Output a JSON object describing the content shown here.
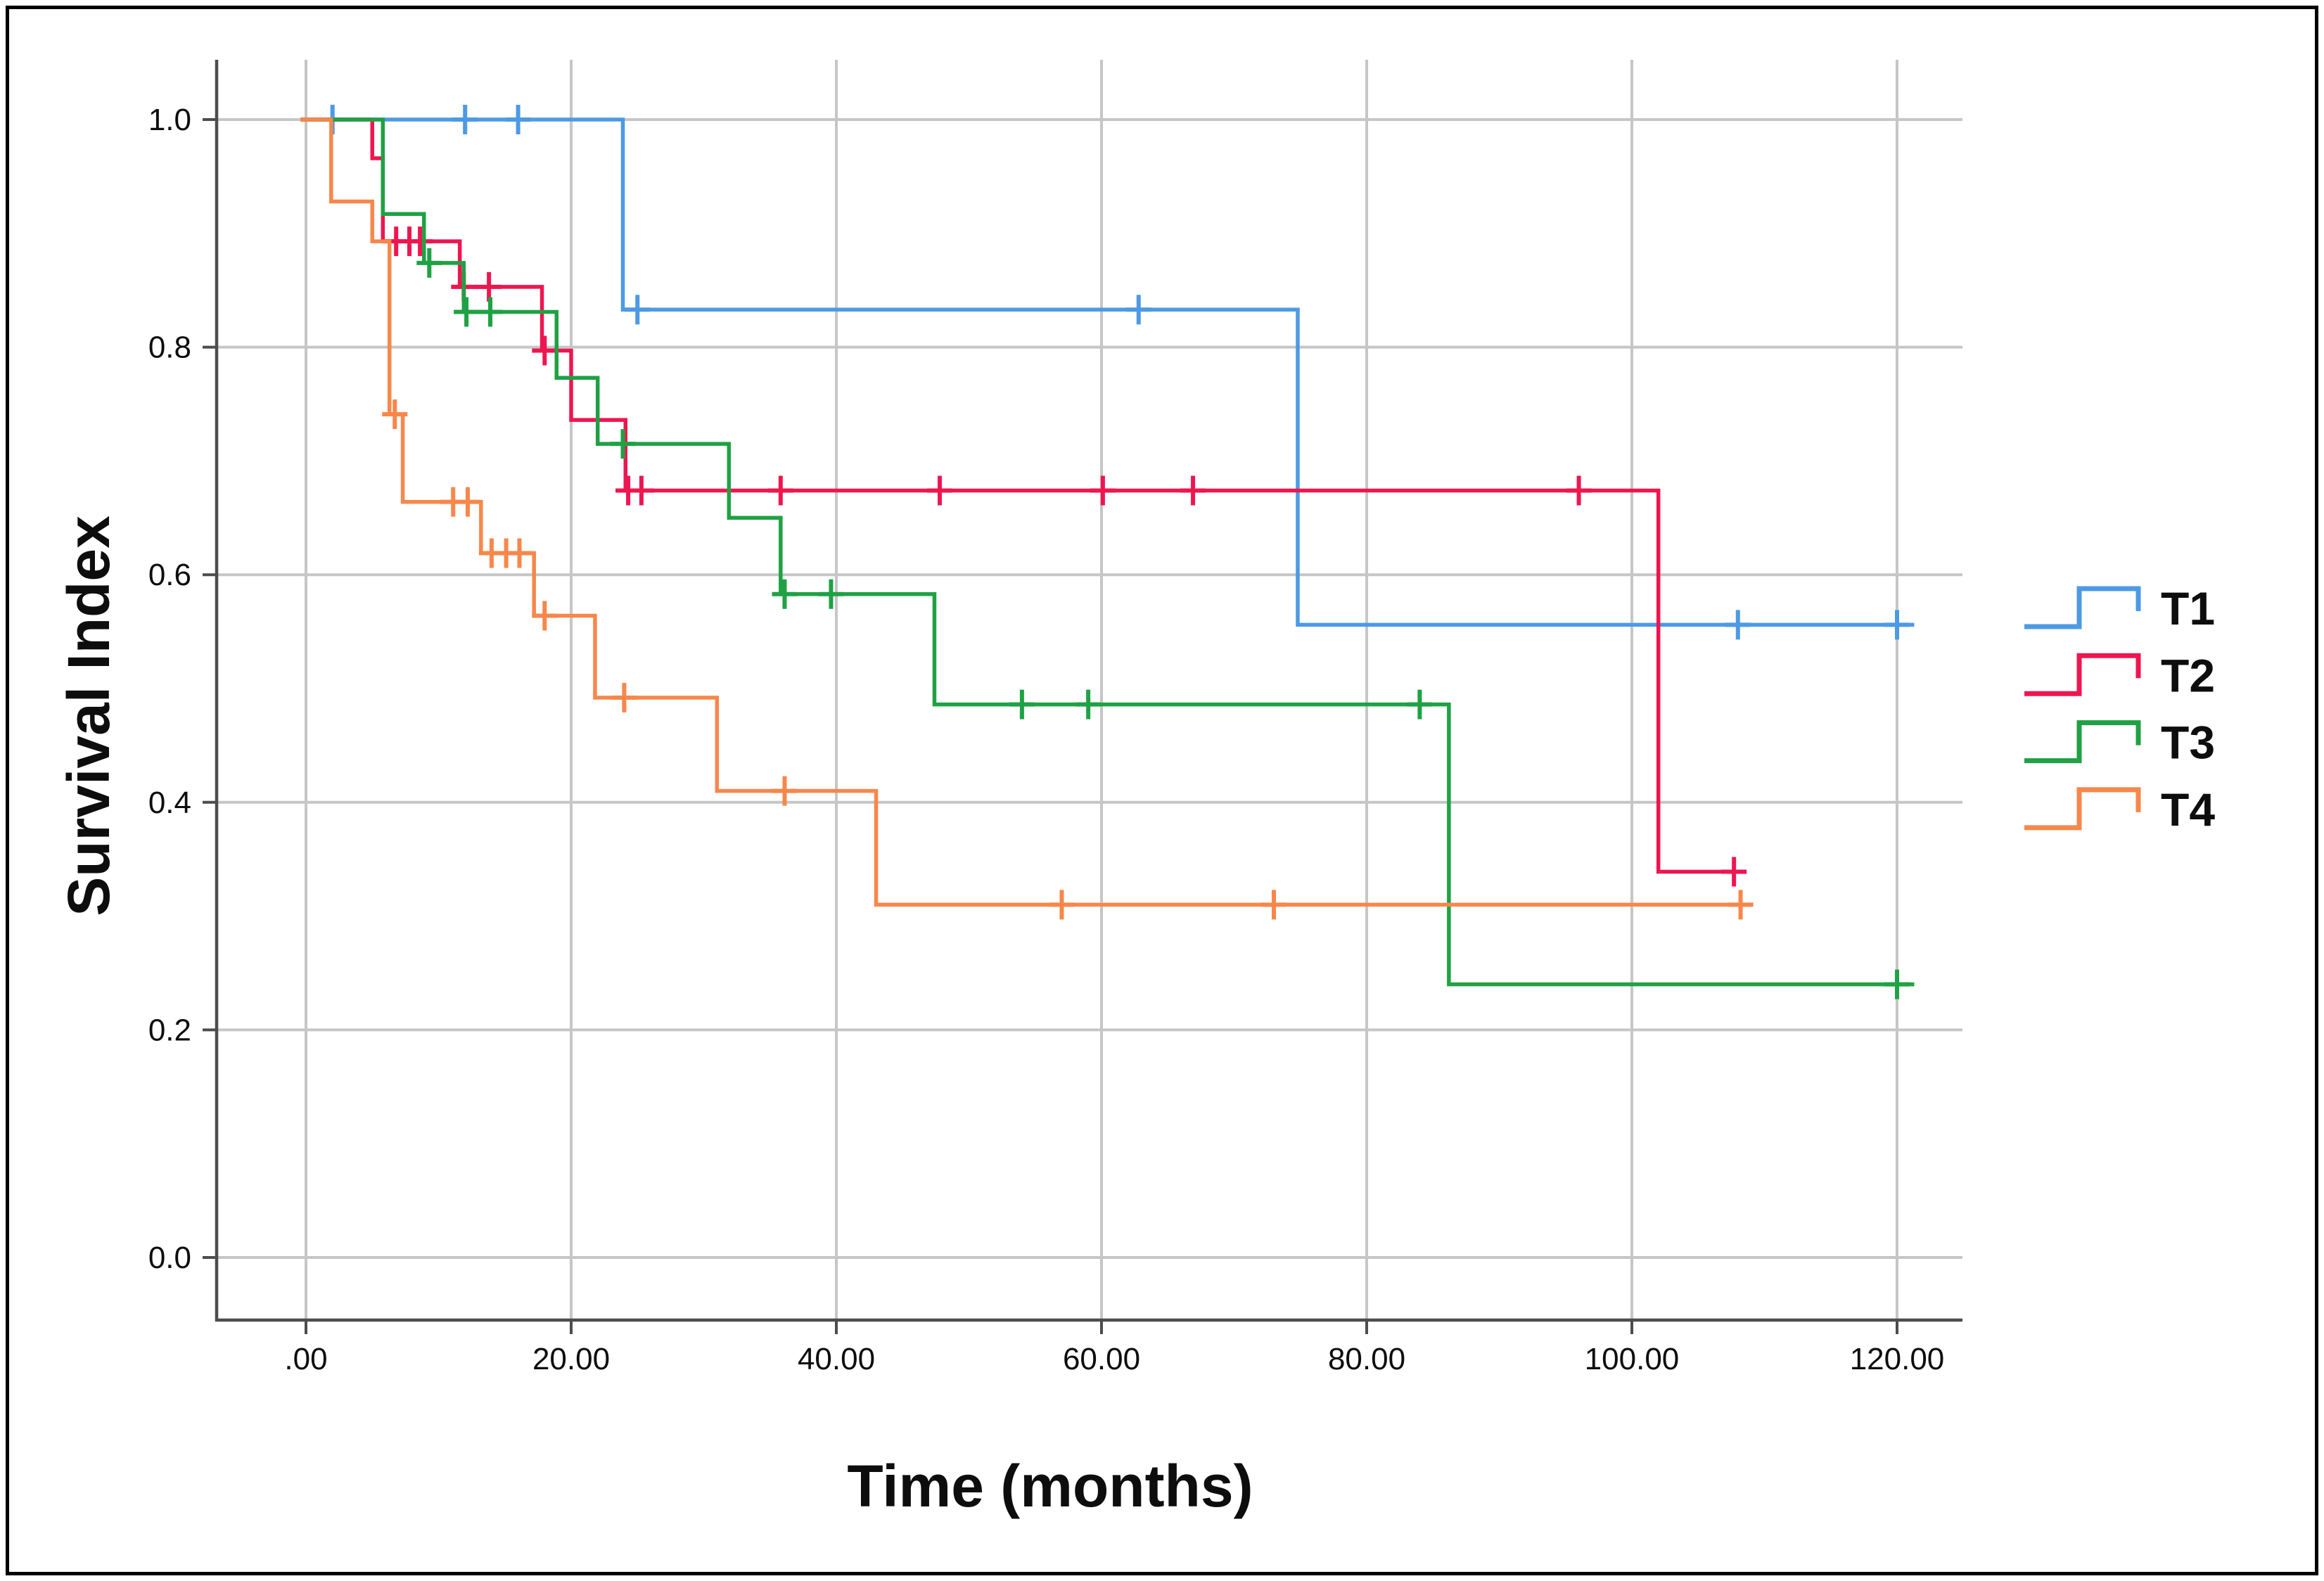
{
  "colors": {
    "background": "#ffffff",
    "border": "#000000",
    "gridline": "#c6c6c6",
    "axis_line": "#4d4d4d",
    "text": "#0d0d0d"
  },
  "chart_data": {
    "type": "line",
    "chart_style": "kaplan-meier-survival-step",
    "title": "",
    "xlabel": "Time (months)",
    "ylabel": "Survival Index",
    "xlim": [
      -6.7,
      125
    ],
    "ylim": [
      -0.055,
      1.053
    ],
    "grid": true,
    "legend_position": "right-middle",
    "x_ticks": [
      {
        "value": 0,
        "label": ".00"
      },
      {
        "value": 20,
        "label": "20.00"
      },
      {
        "value": 40,
        "label": "40.00"
      },
      {
        "value": 60,
        "label": "60.00"
      },
      {
        "value": 80,
        "label": "80.00"
      },
      {
        "value": 100,
        "label": "100.00"
      },
      {
        "value": 120,
        "label": "120.00"
      }
    ],
    "y_ticks": [
      {
        "value": 1.0,
        "label": "1.0"
      },
      {
        "value": 0.8,
        "label": "0.8"
      },
      {
        "value": 0.6,
        "label": "0.6"
      },
      {
        "value": 0.4,
        "label": "0.4"
      },
      {
        "value": 0.2,
        "label": "0.2"
      },
      {
        "value": 0.0,
        "label": "0.0"
      }
    ],
    "series": [
      {
        "name": "T1",
        "color": "#4d9ae4",
        "start": {
          "t": 0,
          "s": 1.0
        },
        "steps": [
          {
            "t": 23.9,
            "s": 0.833
          },
          {
            "t": 74.8,
            "s": 0.556
          }
        ],
        "end_t": 121.3,
        "censors": [
          {
            "t": 2.0,
            "s": 1.0
          },
          {
            "t": 12.0,
            "s": 1.0
          },
          {
            "t": 16.0,
            "s": 1.0
          },
          {
            "t": 25.0,
            "s": 0.833
          },
          {
            "t": 62.8,
            "s": 0.833
          },
          {
            "t": 108.0,
            "s": 0.556
          },
          {
            "t": 120.0,
            "s": 0.556
          }
        ]
      },
      {
        "name": "T2",
        "color": "#ee1650",
        "start": {
          "t": 0,
          "s": 1.0
        },
        "steps": [
          {
            "t": 5.0,
            "s": 0.966
          },
          {
            "t": 5.8,
            "s": 0.893
          },
          {
            "t": 11.6,
            "s": 0.853
          },
          {
            "t": 17.8,
            "s": 0.797
          },
          {
            "t": 20.0,
            "s": 0.736
          },
          {
            "t": 24.1,
            "s": 0.674
          },
          {
            "t": 102.0,
            "s": 0.339
          }
        ],
        "end_t": 108.5,
        "censors": [
          {
            "t": 6.8,
            "s": 0.893
          },
          {
            "t": 7.8,
            "s": 0.893
          },
          {
            "t": 8.6,
            "s": 0.893
          },
          {
            "t": 11.9,
            "s": 0.853
          },
          {
            "t": 13.8,
            "s": 0.853
          },
          {
            "t": 18.0,
            "s": 0.797
          },
          {
            "t": 24.3,
            "s": 0.674
          },
          {
            "t": 25.3,
            "s": 0.674
          },
          {
            "t": 35.8,
            "s": 0.674
          },
          {
            "t": 47.8,
            "s": 0.674
          },
          {
            "t": 60.1,
            "s": 0.674
          },
          {
            "t": 66.9,
            "s": 0.674
          },
          {
            "t": 96.0,
            "s": 0.674
          },
          {
            "t": 107.7,
            "s": 0.339
          }
        ]
      },
      {
        "name": "T3",
        "color": "#1fa144",
        "start": {
          "t": 0,
          "s": 1.0
        },
        "steps": [
          {
            "t": 5.8,
            "s": 0.917
          },
          {
            "t": 8.9,
            "s": 0.874
          },
          {
            "t": 11.9,
            "s": 0.831
          },
          {
            "t": 18.9,
            "s": 0.773
          },
          {
            "t": 22.0,
            "s": 0.715
          },
          {
            "t": 31.9,
            "s": 0.65
          },
          {
            "t": 35.8,
            "s": 0.583
          },
          {
            "t": 47.4,
            "s": 0.486
          },
          {
            "t": 86.2,
            "s": 0.24
          }
        ],
        "end_t": 121.3,
        "censors": [
          {
            "t": 9.3,
            "s": 0.874
          },
          {
            "t": 12.1,
            "s": 0.831
          },
          {
            "t": 13.9,
            "s": 0.831
          },
          {
            "t": 23.9,
            "s": 0.715
          },
          {
            "t": 36.1,
            "s": 0.583
          },
          {
            "t": 39.6,
            "s": 0.583
          },
          {
            "t": 54.0,
            "s": 0.486
          },
          {
            "t": 59.0,
            "s": 0.486
          },
          {
            "t": 84.0,
            "s": 0.486
          },
          {
            "t": 120.0,
            "s": 0.24
          }
        ]
      },
      {
        "name": "T4",
        "color": "#f7874b",
        "start": {
          "t": 0,
          "s": 1.0
        },
        "steps": [
          {
            "t": 1.9,
            "s": 0.928
          },
          {
            "t": 5.0,
            "s": 0.893
          },
          {
            "t": 6.3,
            "s": 0.741
          },
          {
            "t": 7.3,
            "s": 0.664
          },
          {
            "t": 13.2,
            "s": 0.619
          },
          {
            "t": 17.2,
            "s": 0.564
          },
          {
            "t": 21.8,
            "s": 0.492
          },
          {
            "t": 31.0,
            "s": 0.41
          },
          {
            "t": 43.0,
            "s": 0.31
          }
        ],
        "end_t": 108.8,
        "censors": [
          {
            "t": 6.7,
            "s": 0.741
          },
          {
            "t": 11.1,
            "s": 0.664
          },
          {
            "t": 12.2,
            "s": 0.664
          },
          {
            "t": 14.0,
            "s": 0.619
          },
          {
            "t": 15.1,
            "s": 0.619
          },
          {
            "t": 16.1,
            "s": 0.619
          },
          {
            "t": 18.0,
            "s": 0.564
          },
          {
            "t": 24.0,
            "s": 0.492
          },
          {
            "t": 36.1,
            "s": 0.41
          },
          {
            "t": 57.0,
            "s": 0.31
          },
          {
            "t": 73.0,
            "s": 0.31
          },
          {
            "t": 108.2,
            "s": 0.31
          }
        ]
      }
    ]
  }
}
